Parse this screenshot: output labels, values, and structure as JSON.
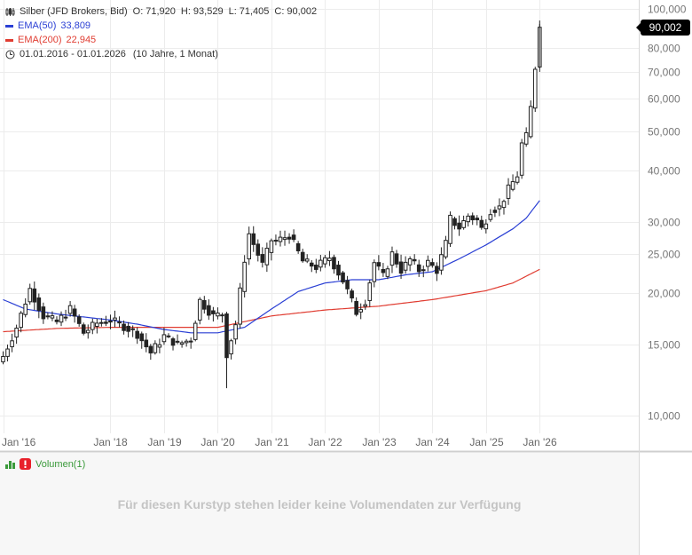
{
  "header": {
    "symbol": "Silber (JFD Brokers, Bid)",
    "ohlc": [
      {
        "k": "O:",
        "v": "71,920"
      },
      {
        "k": "H:",
        "v": "93,529"
      },
      {
        "k": "L:",
        "v": "71,405"
      },
      {
        "k": "C:",
        "v": "90,002"
      }
    ]
  },
  "indicators": [
    {
      "name": "EMA(50)",
      "value": "33,809",
      "color": "#2a3fd4"
    },
    {
      "name": "EMA(200)",
      "value": "22,945",
      "color": "#e03c31"
    }
  ],
  "range": {
    "period": "01.01.2016 - 01.01.2026",
    "span": "(10 Jahre, 1 Monat)"
  },
  "last_price_label": "90,002",
  "volume": {
    "label": "Volumen(1)",
    "message": "Für diesen Kurstyp stehen leider keine Volumendaten zur Verfügung"
  },
  "colors": {
    "candle": "#222222",
    "ema50": "#2a3fd4",
    "ema200": "#e03c31",
    "grid": "#ececec",
    "alert": "#e8202a",
    "volume_icon": "#3a9a3a"
  },
  "chart_data": {
    "type": "candlestick",
    "title": "Silber (JFD Brokers, Bid)",
    "interval": "monthly",
    "y_scale": "log",
    "ylim": [
      9.2,
      105
    ],
    "y_ticks": [
      10,
      15,
      20,
      25,
      30,
      40,
      50,
      60,
      70,
      80,
      100
    ],
    "y_tick_labels": [
      "10,000",
      "15,000",
      "20,000",
      "25,000",
      "30,000",
      "40,000",
      "50,000",
      "60,000",
      "70,000",
      "80,000",
      "100,000"
    ],
    "x_range": [
      "2016-01",
      "2026-03"
    ],
    "x_ticks": [
      "2016-01",
      "2018-01",
      "2019-01",
      "2020-01",
      "2021-01",
      "2022-01",
      "2023-01",
      "2024-01",
      "2025-01",
      "2026-01"
    ],
    "x_tick_labels": [
      "Jan '16",
      "Jan '18",
      "Jan '19",
      "Jan '20",
      "Jan '21",
      "Jan '22",
      "Jan '23",
      "Jan '24",
      "Jan '25",
      "Jan '26"
    ],
    "anchors": [
      [
        "2016-01",
        14.0
      ],
      [
        "2016-04",
        16.5
      ],
      [
        "2016-07",
        20.5
      ],
      [
        "2016-10",
        17.6
      ],
      [
        "2017-01",
        17.0
      ],
      [
        "2017-04",
        18.3
      ],
      [
        "2017-07",
        16.0
      ],
      [
        "2017-10",
        16.9
      ],
      [
        "2018-01",
        17.2
      ],
      [
        "2018-04",
        16.6
      ],
      [
        "2018-07",
        15.9
      ],
      [
        "2018-10",
        14.3
      ],
      [
        "2019-01",
        15.7
      ],
      [
        "2019-04",
        15.0
      ],
      [
        "2019-07",
        15.4
      ],
      [
        "2019-09",
        19.2
      ],
      [
        "2019-12",
        17.6
      ],
      [
        "2020-02",
        17.8
      ],
      [
        "2020-03",
        14.2
      ],
      [
        "2020-05",
        16.8
      ],
      [
        "2020-07",
        24.3
      ],
      [
        "2020-08",
        28.0
      ],
      [
        "2020-11",
        23.5
      ],
      [
        "2021-01",
        27.0
      ],
      [
        "2021-02",
        26.8
      ],
      [
        "2021-05",
        27.8
      ],
      [
        "2021-08",
        24.0
      ],
      [
        "2021-11",
        23.2
      ],
      [
        "2022-02",
        24.5
      ],
      [
        "2022-05",
        21.5
      ],
      [
        "2022-08",
        18.0
      ],
      [
        "2022-10",
        19.2
      ],
      [
        "2022-12",
        23.8
      ],
      [
        "2023-02",
        22.0
      ],
      [
        "2023-04",
        25.0
      ],
      [
        "2023-06",
        22.8
      ],
      [
        "2023-08",
        24.2
      ],
      [
        "2023-10",
        22.8
      ],
      [
        "2023-12",
        23.8
      ],
      [
        "2024-02",
        22.8
      ],
      [
        "2024-04",
        26.5
      ],
      [
        "2024-05",
        30.5
      ],
      [
        "2024-07",
        29.0
      ],
      [
        "2024-09",
        31.0
      ],
      [
        "2024-11",
        30.2
      ],
      [
        "2024-12",
        28.8
      ],
      [
        "2025-02",
        32.0
      ],
      [
        "2025-04",
        32.5
      ],
      [
        "2025-06",
        36.0
      ],
      [
        "2025-08",
        39.0
      ],
      [
        "2025-09",
        46.5
      ],
      [
        "2025-10",
        48.5
      ],
      [
        "2025-11",
        57.0
      ],
      [
        "2025-12",
        71.9
      ],
      [
        "2026-01",
        90.0
      ]
    ],
    "ema50": [
      [
        "2016-01",
        19.3
      ],
      [
        "2016-06",
        18.3
      ],
      [
        "2017-01",
        17.8
      ],
      [
        "2018-01",
        17.2
      ],
      [
        "2018-07",
        16.8
      ],
      [
        "2019-01",
        16.3
      ],
      [
        "2019-07",
        16.0
      ],
      [
        "2020-01",
        16.0
      ],
      [
        "2020-07",
        16.5
      ],
      [
        "2021-01",
        18.3
      ],
      [
        "2021-07",
        20.2
      ],
      [
        "2022-01",
        21.2
      ],
      [
        "2022-07",
        21.6
      ],
      [
        "2023-01",
        21.6
      ],
      [
        "2023-07",
        22.2
      ],
      [
        "2024-01",
        22.6
      ],
      [
        "2024-07",
        24.3
      ],
      [
        "2025-01",
        26.3
      ],
      [
        "2025-07",
        28.8
      ],
      [
        "2025-10",
        30.6
      ],
      [
        "2026-01",
        33.8
      ]
    ],
    "ema200": [
      [
        "2016-01",
        16.1
      ],
      [
        "2017-01",
        16.4
      ],
      [
        "2018-01",
        16.5
      ],
      [
        "2019-01",
        16.5
      ],
      [
        "2020-01",
        16.5
      ],
      [
        "2021-01",
        17.6
      ],
      [
        "2022-01",
        18.2
      ],
      [
        "2023-01",
        18.6
      ],
      [
        "2024-01",
        19.3
      ],
      [
        "2025-01",
        20.3
      ],
      [
        "2025-07",
        21.2
      ],
      [
        "2026-01",
        22.9
      ]
    ]
  }
}
